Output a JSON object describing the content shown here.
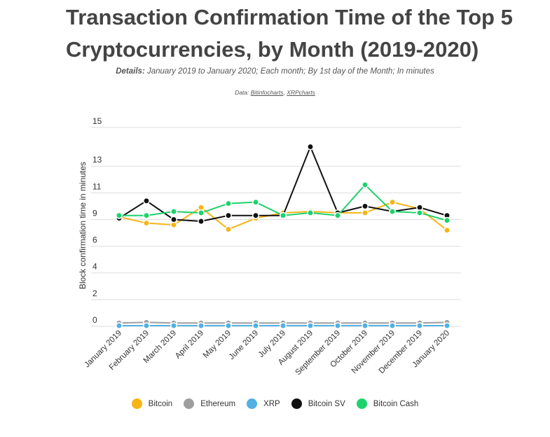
{
  "title": "Transaction Confirmation Time of the Top 5 Cryptocurrencies, by Month (2019-2020)",
  "details": {
    "label": "Details:",
    "text": "January 2019 to January 2020; Each month; By 1st day of the Month; In minutes"
  },
  "source": {
    "prefix": "Data:",
    "links": [
      "Bitinfocharts",
      "XRPcharts"
    ],
    "separator": ","
  },
  "chart_data": {
    "type": "line",
    "ylabel": "Block confirmation time in minutes",
    "xlabel": "",
    "ylim": [
      0,
      15
    ],
    "yticks": [
      0,
      2,
      4,
      6,
      9,
      11,
      13,
      15
    ],
    "grid": true,
    "legend_position": "bottom",
    "categories": [
      "January 2019",
      "February 2019",
      "March 2019",
      "April 2019",
      "May 2019",
      "June 2019",
      "July 2019",
      "August 2019",
      "September 2019",
      "October 2019",
      "November 2019",
      "December 2019",
      "January 2020"
    ],
    "series": [
      {
        "name": "Bitcoin",
        "color": "#f6b514",
        "values": [
          9.2,
          8.6,
          8.4,
          9.9,
          7.9,
          9.1,
          9.5,
          9.6,
          9.5,
          9.5,
          10.3,
          9.8,
          7.8
        ]
      },
      {
        "name": "Ethereum",
        "color": "#9e9e9e",
        "values": [
          0.25,
          0.3,
          0.25,
          0.25,
          0.25,
          0.25,
          0.25,
          0.25,
          0.25,
          0.25,
          0.25,
          0.25,
          0.3
        ]
      },
      {
        "name": "XRP",
        "color": "#52b0e4",
        "values": [
          0.05,
          0.05,
          0.05,
          0.05,
          0.05,
          0.05,
          0.05,
          0.05,
          0.05,
          0.05,
          0.05,
          0.05,
          0.05
        ]
      },
      {
        "name": "Bitcoin SV",
        "color": "#111111",
        "values": [
          9.1,
          10.4,
          9.0,
          8.8,
          9.3,
          9.3,
          9.3,
          14.0,
          9.5,
          10.0,
          9.6,
          9.9,
          9.3
        ]
      },
      {
        "name": "Bitcoin Cash",
        "color": "#1dd26c",
        "values": [
          9.3,
          9.3,
          9.6,
          9.5,
          10.2,
          10.3,
          9.3,
          9.5,
          9.3,
          11.6,
          9.6,
          9.5,
          8.9
        ]
      }
    ]
  }
}
